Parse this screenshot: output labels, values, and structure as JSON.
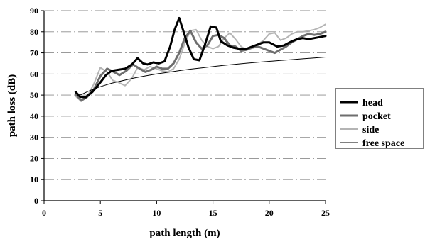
{
  "chart_data": {
    "type": "line",
    "title": "",
    "xlabel": "path length (m)",
    "ylabel": "path loss (dB)",
    "xlim": [
      0,
      25
    ],
    "ylim": [
      0,
      90
    ],
    "xticks": [
      0,
      5,
      10,
      15,
      20,
      25
    ],
    "yticks": [
      0,
      10,
      20,
      30,
      40,
      50,
      60,
      70,
      80,
      90
    ],
    "grid": "horizontal",
    "legend_position": "right",
    "series": [
      {
        "name": "head",
        "color": "#000000",
        "style": "thick-solid",
        "x": [
          2.8,
          3.2,
          3.7,
          4.3,
          5.0,
          5.5,
          6.0,
          6.6,
          7.2,
          7.8,
          8.3,
          8.8,
          9.2,
          9.7,
          10.2,
          10.7,
          11.2,
          11.6,
          12.0,
          12.4,
          12.8,
          13.3,
          13.8,
          14.3,
          14.8,
          15.3,
          15.7,
          16.3,
          16.8,
          17.3,
          18.0,
          18.5,
          19.0,
          19.5,
          20.0,
          20.7,
          21.3,
          22.0,
          22.5,
          23.0,
          23.5,
          24.0,
          24.5,
          25.0
        ],
        "y": [
          51.5,
          49.2,
          49.0,
          51.5,
          56.0,
          59.5,
          61.5,
          62.0,
          62.5,
          64.5,
          67.5,
          65.0,
          64.5,
          65.5,
          65.0,
          66.0,
          73.0,
          81.0,
          86.5,
          80.0,
          73.0,
          67.0,
          66.5,
          74.0,
          82.5,
          82.0,
          75.5,
          73.5,
          72.5,
          72.0,
          72.0,
          73.0,
          74.0,
          75.0,
          75.0,
          73.0,
          73.5,
          75.5,
          76.5,
          77.0,
          76.5,
          77.0,
          77.5,
          78.0
        ]
      },
      {
        "name": "pocket",
        "color": "#6e6e6e",
        "style": "thick-solid",
        "x": [
          2.8,
          3.3,
          3.8,
          4.4,
          5.0,
          5.6,
          6.2,
          6.7,
          7.3,
          7.9,
          8.5,
          9.0,
          9.5,
          10.0,
          10.5,
          11.0,
          11.5,
          12.0,
          12.5,
          13.0,
          13.5,
          14.0,
          14.5,
          15.0,
          15.5,
          16.0,
          16.5,
          17.0,
          17.5,
          18.0,
          18.5,
          19.0,
          19.5,
          20.0,
          20.5,
          21.0,
          21.5,
          22.0,
          22.5,
          23.0,
          23.5,
          24.0,
          24.5,
          25.0
        ],
        "y": [
          50.5,
          47.5,
          49.0,
          52.5,
          59.0,
          62.5,
          61.0,
          59.5,
          61.5,
          64.5,
          62.5,
          61.0,
          62.0,
          63.5,
          62.5,
          62.5,
          65.0,
          70.0,
          77.0,
          80.5,
          75.0,
          72.0,
          73.5,
          78.0,
          78.5,
          77.0,
          73.5,
          73.0,
          71.0,
          71.5,
          72.5,
          73.0,
          72.0,
          71.0,
          70.0,
          71.5,
          73.0,
          75.0,
          76.5,
          78.0,
          79.0,
          78.5,
          79.0,
          80.0
        ]
      },
      {
        "name": "side",
        "color": "#b4b4b4",
        "style": "thin-solid",
        "x": [
          2.8,
          3.3,
          3.8,
          4.4,
          5.0,
          5.6,
          6.1,
          6.6,
          7.2,
          7.8,
          8.3,
          8.9,
          9.4,
          10.0,
          10.5,
          11.0,
          11.5,
          12.0,
          12.5,
          13.0,
          13.5,
          14.0,
          14.5,
          15.0,
          15.5,
          16.0,
          16.5,
          17.0,
          17.5,
          18.0,
          18.5,
          19.0,
          19.5,
          20.0,
          20.5,
          21.0,
          21.5,
          22.0,
          22.5,
          23.0,
          23.5,
          24.0,
          24.5,
          25.0
        ],
        "y": [
          49.5,
          47.0,
          49.0,
          55.0,
          63.0,
          61.0,
          57.0,
          56.0,
          54.5,
          58.0,
          63.0,
          62.0,
          63.5,
          62.5,
          61.5,
          61.0,
          62.5,
          67.0,
          74.5,
          80.5,
          81.0,
          76.0,
          73.0,
          72.0,
          73.0,
          77.0,
          79.5,
          76.5,
          73.0,
          71.5,
          73.0,
          74.0,
          76.0,
          79.0,
          79.5,
          76.0,
          77.0,
          79.0,
          80.0,
          80.0,
          80.5,
          81.0,
          82.0,
          83.5
        ]
      },
      {
        "name": "free space",
        "color": "#000000",
        "style": "thin-solid",
        "x": [
          3,
          4,
          5,
          6,
          7,
          8,
          9,
          10,
          11,
          12,
          13,
          14,
          15,
          16,
          17,
          18,
          19,
          20,
          21,
          22,
          23,
          24,
          25
        ],
        "y": [
          49.5,
          52.0,
          54.0,
          55.6,
          56.9,
          58.1,
          59.1,
          60.0,
          60.8,
          61.6,
          62.3,
          62.9,
          63.5,
          64.1,
          64.6,
          65.1,
          65.6,
          66.0,
          66.4,
          66.8,
          67.2,
          67.6,
          68.0
        ]
      }
    ]
  }
}
